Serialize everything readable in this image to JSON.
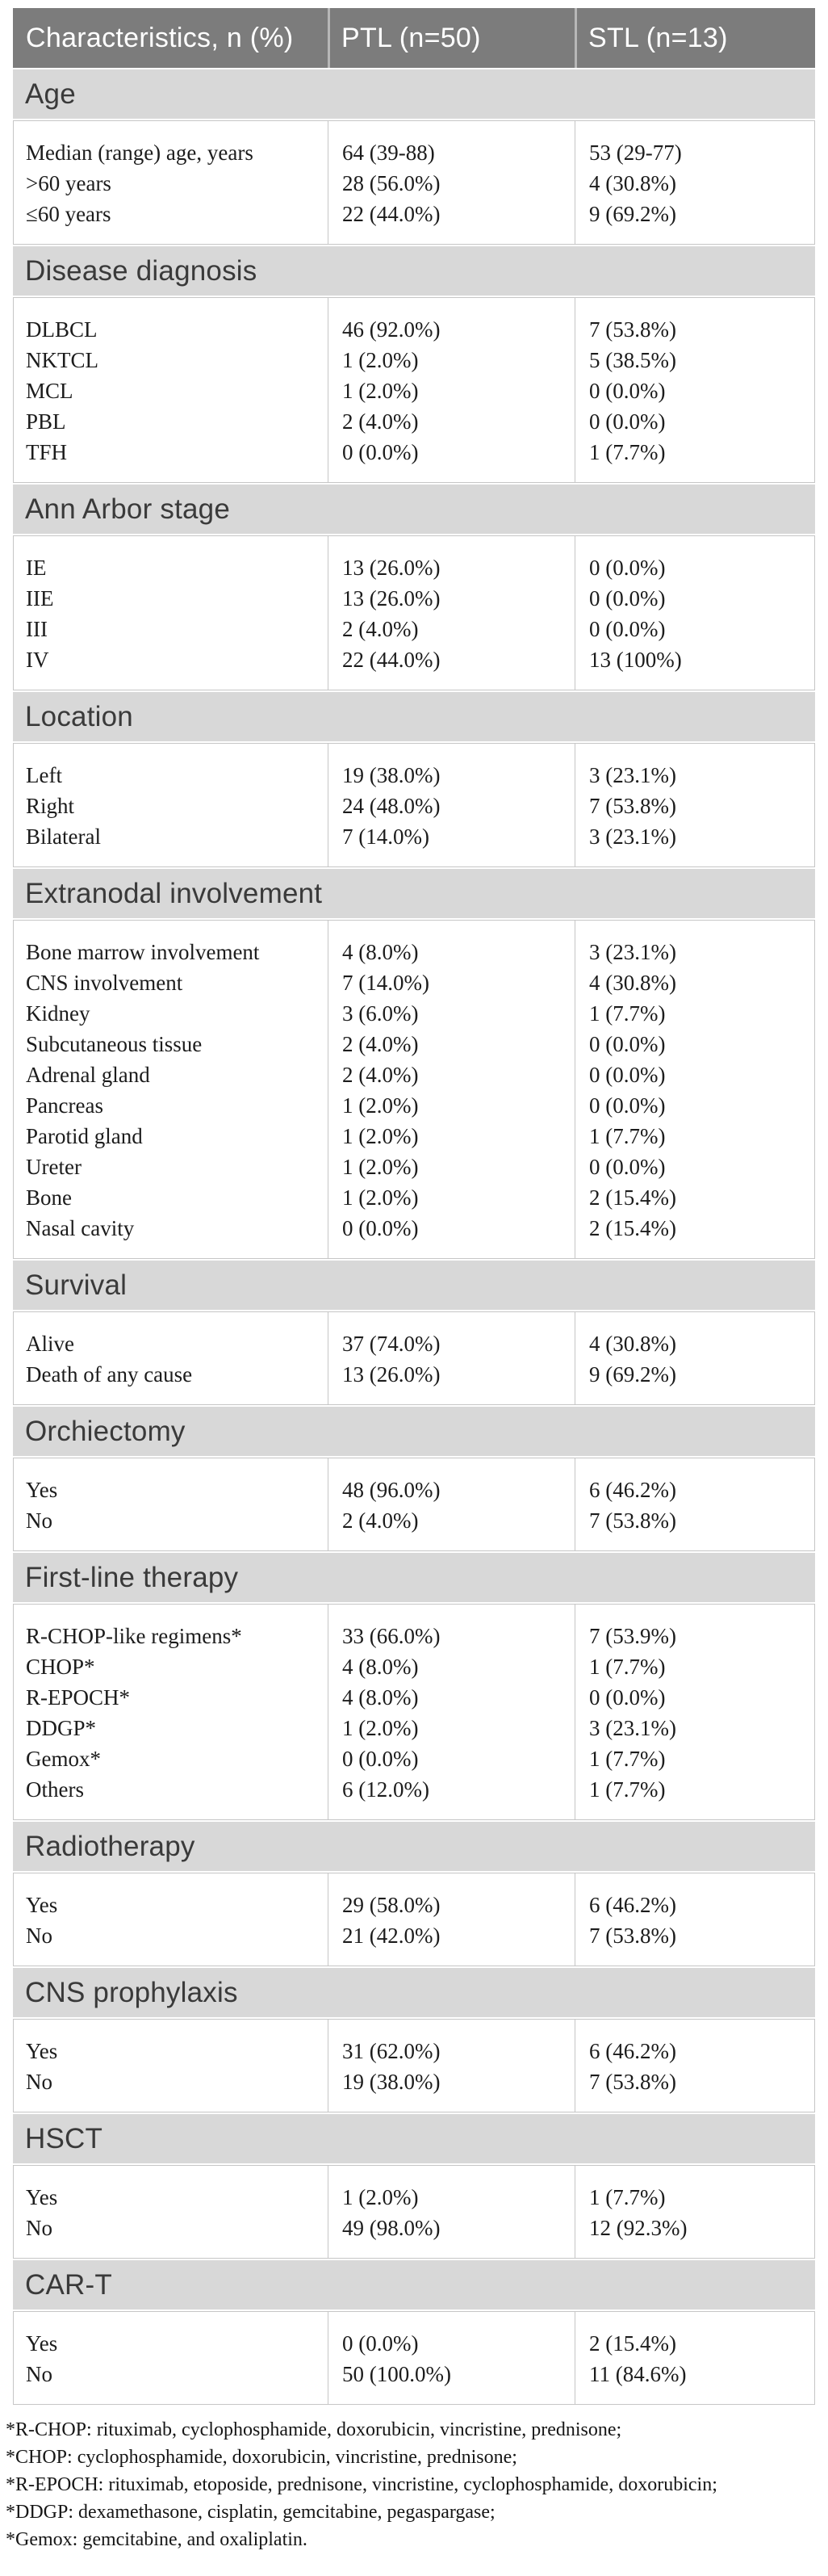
{
  "table": {
    "header": {
      "characteristics": "Characteristics, n (%)",
      "ptl": "PTL (n=50)",
      "stl": "STL (n=13)"
    },
    "sections": [
      {
        "title": "Age",
        "rows": [
          {
            "label": "Median (range) age, years",
            "ptl": "64 (39-88)",
            "stl": "53 (29-77)"
          },
          {
            "label": ">60 years",
            "ptl": "28 (56.0%)",
            "stl": "4 (30.8%)"
          },
          {
            "label": "≤60 years",
            "ptl": "22 (44.0%)",
            "stl": "9 (69.2%)"
          }
        ]
      },
      {
        "title": "Disease diagnosis",
        "rows": [
          {
            "label": "DLBCL",
            "ptl": "46 (92.0%)",
            "stl": "7 (53.8%)"
          },
          {
            "label": "NKTCL",
            "ptl": "1 (2.0%)",
            "stl": "5 (38.5%)"
          },
          {
            "label": "MCL",
            "ptl": "1 (2.0%)",
            "stl": "0 (0.0%)"
          },
          {
            "label": "PBL",
            "ptl": "2 (4.0%)",
            "stl": "0 (0.0%)"
          },
          {
            "label": "TFH",
            "ptl": "0 (0.0%)",
            "stl": "1 (7.7%)"
          }
        ]
      },
      {
        "title": "Ann Arbor stage",
        "rows": [
          {
            "label": "IE",
            "ptl": "13 (26.0%)",
            "stl": "0 (0.0%)"
          },
          {
            "label": "IIE",
            "ptl": "13 (26.0%)",
            "stl": "0 (0.0%)"
          },
          {
            "label": "III",
            "ptl": "2 (4.0%)",
            "stl": "0 (0.0%)"
          },
          {
            "label": "IV",
            "ptl": "22 (44.0%)",
            "stl": "13 (100%)"
          }
        ]
      },
      {
        "title": "Location",
        "rows": [
          {
            "label": "Left",
            "ptl": "19 (38.0%)",
            "stl": "3 (23.1%)"
          },
          {
            "label": "Right",
            "ptl": "24 (48.0%)",
            "stl": "7 (53.8%)"
          },
          {
            "label": "Bilateral",
            "ptl": "7 (14.0%)",
            "stl": "3 (23.1%)"
          }
        ]
      },
      {
        "title": "Extranodal involvement",
        "rows": [
          {
            "label": "Bone marrow involvement",
            "ptl": "4 (8.0%)",
            "stl": "3 (23.1%)"
          },
          {
            "label": "CNS involvement",
            "ptl": "7 (14.0%)",
            "stl": "4 (30.8%)"
          },
          {
            "label": "Kidney",
            "ptl": "3 (6.0%)",
            "stl": "1 (7.7%)"
          },
          {
            "label": "Subcutaneous tissue",
            "ptl": "2 (4.0%)",
            "stl": "0 (0.0%)"
          },
          {
            "label": "Adrenal gland",
            "ptl": "2 (4.0%)",
            "stl": "0 (0.0%)"
          },
          {
            "label": "Pancreas",
            "ptl": "1 (2.0%)",
            "stl": "0 (0.0%)"
          },
          {
            "label": "Parotid gland",
            "ptl": "1 (2.0%)",
            "stl": "1 (7.7%)"
          },
          {
            "label": "Ureter",
            "ptl": "1 (2.0%)",
            "stl": "0 (0.0%)"
          },
          {
            "label": "Bone",
            "ptl": "1 (2.0%)",
            "stl": "2 (15.4%)"
          },
          {
            "label": "Nasal cavity",
            "ptl": "0 (0.0%)",
            "stl": "2 (15.4%)"
          }
        ]
      },
      {
        "title": "Survival",
        "rows": [
          {
            "label": "Alive",
            "ptl": "37 (74.0%)",
            "stl": "4 (30.8%)"
          },
          {
            "label": "Death of any cause",
            "ptl": "13 (26.0%)",
            "stl": "9 (69.2%)"
          }
        ]
      },
      {
        "title": "Orchiectomy",
        "rows": [
          {
            "label": "Yes",
            "ptl": "48 (96.0%)",
            "stl": "6 (46.2%)"
          },
          {
            "label": "No",
            "ptl": "2 (4.0%)",
            "stl": "7 (53.8%)"
          }
        ]
      },
      {
        "title": "First-line therapy",
        "rows": [
          {
            "label": "R-CHOP-like regimens*",
            "ptl": "33 (66.0%)",
            "stl": "7 (53.9%)"
          },
          {
            "label": "CHOP*",
            "ptl": "4 (8.0%)",
            "stl": "1 (7.7%)"
          },
          {
            "label": "R-EPOCH*",
            "ptl": "4 (8.0%)",
            "stl": "0 (0.0%)"
          },
          {
            "label": "DDGP*",
            "ptl": "1 (2.0%)",
            "stl": "3 (23.1%)"
          },
          {
            "label": "Gemox*",
            "ptl": "0 (0.0%)",
            "stl": "1 (7.7%)"
          },
          {
            "label": "Others",
            "ptl": "6 (12.0%)",
            "stl": "1 (7.7%)"
          }
        ]
      },
      {
        "title": "Radiotherapy",
        "rows": [
          {
            "label": "Yes",
            "ptl": "29 (58.0%)",
            "stl": "6 (46.2%)"
          },
          {
            "label": "No",
            "ptl": "21 (42.0%)",
            "stl": "7 (53.8%)"
          }
        ]
      },
      {
        "title": "CNS prophylaxis",
        "rows": [
          {
            "label": "Yes",
            "ptl": "31 (62.0%)",
            "stl": "6 (46.2%)"
          },
          {
            "label": "No",
            "ptl": "19 (38.0%)",
            "stl": "7 (53.8%)"
          }
        ]
      },
      {
        "title": "HSCT",
        "rows": [
          {
            "label": "Yes",
            "ptl": "1 (2.0%)",
            "stl": "1 (7.7%)"
          },
          {
            "label": "No",
            "ptl": "49 (98.0%)",
            "stl": "12 (92.3%)"
          }
        ]
      },
      {
        "title": "CAR-T",
        "rows": [
          {
            "label": "Yes",
            "ptl": "0 (0.0%)",
            "stl": "2 (15.4%)"
          },
          {
            "label": "No",
            "ptl": "50 (100.0%)",
            "stl": "11 (84.6%)"
          }
        ]
      }
    ],
    "footnotes": [
      "*R-CHOP: rituximab, cyclophosphamide, doxorubicin, vincristine, prednisone;",
      "*CHOP: cyclophosphamide, doxorubicin, vincristine, prednisone;",
      "*R-EPOCH: rituximab, etoposide, prednisone, vincristine, cyclophosphamide, doxorubicin;",
      "*DDGP: dexamethasone, cisplatin, gemcitabine, pegaspargase;",
      "*Gemox: gemcitabine, and oxaliplatin."
    ],
    "colors": {
      "header_bg": "#7c7c7c",
      "header_text": "#ffffff",
      "section_bg": "#d8d8d8",
      "section_text": "#3a3a3a",
      "body_text": "#1c1c1c",
      "grid_line": "#c6c6c6"
    }
  }
}
